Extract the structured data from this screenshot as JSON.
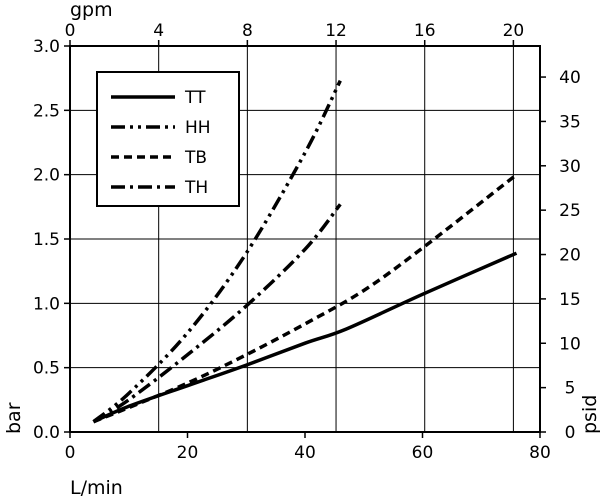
{
  "chart_data": {
    "type": "line",
    "xlabel_bottom": "L/min",
    "xlabel_top": "gpm",
    "ylabel_left": "bar",
    "ylabel_right": "psid",
    "x_bottom": {
      "range": [
        0,
        80
      ],
      "ticks": [
        0,
        20,
        40,
        60,
        80
      ]
    },
    "x_top": {
      "range": [
        0,
        21.2
      ],
      "ticks": [
        0,
        4,
        8,
        12,
        16,
        20
      ]
    },
    "y_left": {
      "range": [
        0,
        3.0
      ],
      "ticks": [
        0.0,
        0.5,
        1.0,
        1.5,
        2.0,
        2.5,
        3.0
      ],
      "tick_labels": [
        "0.0",
        "0.5",
        "1.0",
        "1.5",
        "2.0",
        "2.5",
        "3.0"
      ]
    },
    "y_right": {
      "range": [
        0,
        43.5
      ],
      "ticks": [
        0,
        5,
        10,
        15,
        20,
        25,
        30,
        35,
        40
      ]
    },
    "grid": true,
    "legend_position": "top-left",
    "series": [
      {
        "name": "TT",
        "style": "solid",
        "x": [
          4,
          10,
          20,
          30,
          40,
          47,
          60,
          76
        ],
        "y": [
          0.08,
          0.2,
          0.36,
          0.52,
          0.69,
          0.8,
          1.07,
          1.39
        ]
      },
      {
        "name": "HH",
        "style": "dash-dot-dot",
        "x": [
          4,
          10,
          20,
          30,
          40,
          46
        ],
        "y": [
          0.08,
          0.3,
          0.77,
          1.39,
          2.17,
          2.73
        ]
      },
      {
        "name": "TB",
        "style": "dashed",
        "x": [
          4,
          10,
          20,
          30,
          40,
          50,
          60,
          76
        ],
        "y": [
          0.08,
          0.19,
          0.38,
          0.6,
          0.84,
          1.1,
          1.43,
          2.0
        ]
      },
      {
        "name": "TH",
        "style": "dash-dot",
        "x": [
          4,
          10,
          20,
          30,
          40,
          46
        ],
        "y": [
          0.08,
          0.25,
          0.6,
          0.98,
          1.42,
          1.77
        ]
      }
    ]
  }
}
